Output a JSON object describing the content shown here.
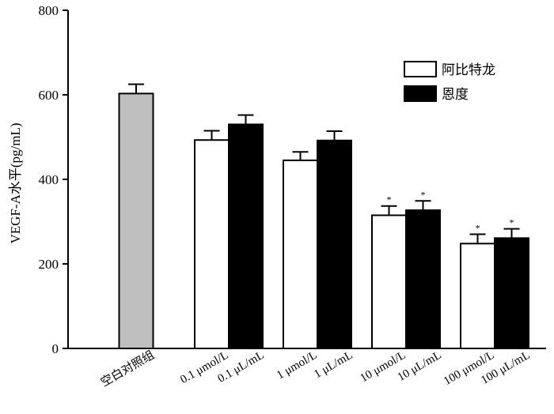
{
  "chart_data": {
    "type": "bar",
    "title": "",
    "ylabel": "VEGF-A水平(pg/mL)",
    "xlabel": "",
    "ylim": [
      0,
      800
    ],
    "yticks": [
      0,
      200,
      400,
      600,
      800
    ],
    "grid": false,
    "legend_position": "top-right",
    "control": {
      "label": "空白对照组",
      "value": 603,
      "error": 22,
      "color": "#bfbfbf"
    },
    "series": [
      {
        "name": "阿比特龙",
        "color": "#ffffff",
        "labels": [
          "0.1 μmol/L",
          "1 μmol/L",
          "10 μmol/L",
          "100 μmol/L"
        ],
        "values": [
          493,
          445,
          315,
          248
        ],
        "errors": [
          22,
          20,
          22,
          22
        ],
        "significance": [
          "",
          "",
          "*",
          "*"
        ]
      },
      {
        "name": "恩度",
        "color": "#000000",
        "labels": [
          "0.1 μL/mL",
          "1 μL/mL",
          "10 μL/mL",
          "100 μL/mL"
        ],
        "values": [
          530,
          492,
          327,
          261
        ],
        "errors": [
          22,
          22,
          22,
          22
        ],
        "significance": [
          "",
          "",
          "*",
          "*"
        ]
      }
    ]
  }
}
